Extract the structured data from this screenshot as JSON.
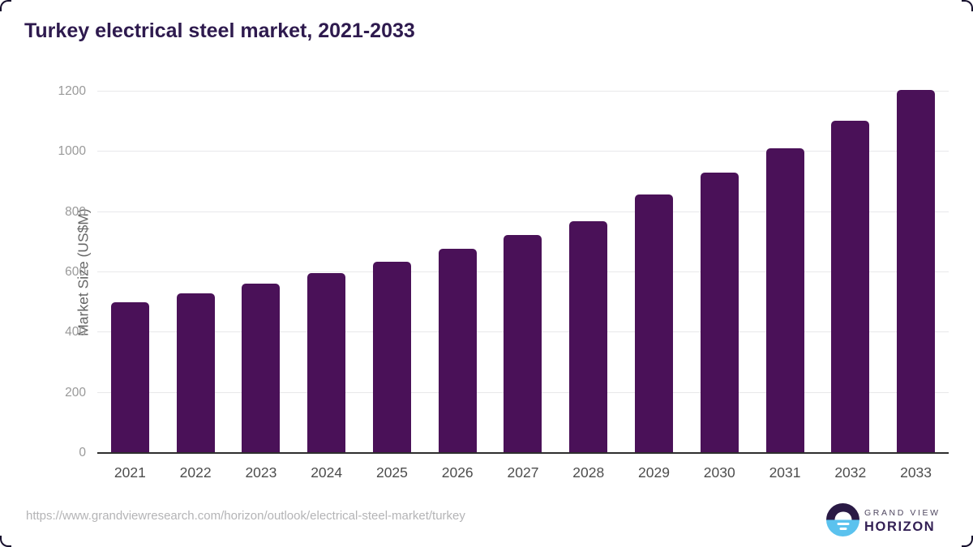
{
  "title": "Turkey electrical steel market, 2021-2033",
  "chart_data": {
    "type": "bar",
    "categories": [
      "2021",
      "2022",
      "2023",
      "2024",
      "2025",
      "2026",
      "2027",
      "2028",
      "2029",
      "2030",
      "2031",
      "2032",
      "2033"
    ],
    "values": [
      500,
      530,
      562,
      597,
      635,
      679,
      724,
      770,
      858,
      930,
      1011,
      1104,
      1206
    ],
    "title": "Turkey electrical steel market, 2021-2033",
    "xlabel": "",
    "ylabel": "Market Size (US$M)",
    "ylim": [
      0,
      1200
    ],
    "yticks": [
      0,
      200,
      400,
      600,
      800,
      1000,
      1200
    ],
    "grid": true,
    "legend": "none",
    "bar_color": "#4a1158"
  },
  "footer": {
    "source_url": "https://www.grandviewresearch.com/horizon/outlook/electrical-steel-market/turkey",
    "logo": {
      "line1": "GRAND VIEW",
      "line2": "HORIZON"
    }
  },
  "colors": {
    "title": "#2e1a4e",
    "bar": "#4a1158",
    "gridline": "#e8e8ea",
    "axis_line": "#2e2e2e",
    "y_tick_text": "#999999",
    "x_tick_text": "#4d4d4d",
    "url_text": "#b4b4b6",
    "logo_dark_half": "#2a1a45",
    "logo_light_half": "#5bc2ee"
  }
}
